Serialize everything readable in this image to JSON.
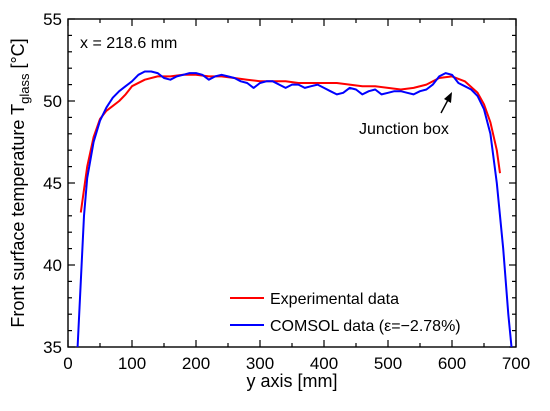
{
  "chart_data": {
    "type": "line",
    "xlabel": "y axis [mm]",
    "ylabel_main": "Front surface temperature T",
    "ylabel_sub": "glass",
    "ylabel_unit": " [°C]",
    "xlim": [
      0,
      700
    ],
    "ylim": [
      35,
      55
    ],
    "xticks": [
      0,
      100,
      200,
      300,
      400,
      500,
      600,
      700
    ],
    "yticks": [
      35,
      40,
      45,
      50,
      55
    ],
    "grid": false,
    "legend_position": "bottom-right",
    "annotations": [
      {
        "text": "x = 218.6 mm"
      },
      {
        "text": "Junction box",
        "arrow_to": [
          595,
          51.2
        ]
      }
    ],
    "series": [
      {
        "name": "Experimental data",
        "color": "#ff0000",
        "points": [
          [
            20,
            43.2
          ],
          [
            30,
            46.0
          ],
          [
            40,
            47.8
          ],
          [
            50,
            48.9
          ],
          [
            60,
            49.4
          ],
          [
            70,
            49.7
          ],
          [
            80,
            50.0
          ],
          [
            90,
            50.4
          ],
          [
            100,
            50.9
          ],
          [
            120,
            51.3
          ],
          [
            140,
            51.5
          ],
          [
            160,
            51.5
          ],
          [
            180,
            51.6
          ],
          [
            200,
            51.6
          ],
          [
            220,
            51.5
          ],
          [
            240,
            51.5
          ],
          [
            260,
            51.4
          ],
          [
            280,
            51.3
          ],
          [
            300,
            51.2
          ],
          [
            320,
            51.2
          ],
          [
            340,
            51.2
          ],
          [
            360,
            51.1
          ],
          [
            380,
            51.1
          ],
          [
            400,
            51.1
          ],
          [
            420,
            51.1
          ],
          [
            440,
            51.0
          ],
          [
            460,
            50.9
          ],
          [
            480,
            50.9
          ],
          [
            500,
            50.8
          ],
          [
            520,
            50.7
          ],
          [
            540,
            50.8
          ],
          [
            560,
            51.0
          ],
          [
            580,
            51.4
          ],
          [
            600,
            51.5
          ],
          [
            620,
            51.2
          ],
          [
            640,
            50.5
          ],
          [
            650,
            49.8
          ],
          [
            660,
            48.7
          ],
          [
            670,
            47.0
          ],
          [
            675,
            45.6
          ]
        ]
      },
      {
        "name": "COMSOL data (ε=−2.78%)",
        "color": "#0000ff",
        "points": [
          [
            15,
            35.0
          ],
          [
            20,
            39.0
          ],
          [
            25,
            43.0
          ],
          [
            30,
            45.3
          ],
          [
            40,
            47.5
          ],
          [
            50,
            48.8
          ],
          [
            60,
            49.6
          ],
          [
            70,
            50.2
          ],
          [
            80,
            50.6
          ],
          [
            90,
            50.9
          ],
          [
            100,
            51.2
          ],
          [
            110,
            51.6
          ],
          [
            120,
            51.8
          ],
          [
            130,
            51.8
          ],
          [
            140,
            51.7
          ],
          [
            150,
            51.4
          ],
          [
            160,
            51.3
          ],
          [
            170,
            51.5
          ],
          [
            180,
            51.6
          ],
          [
            190,
            51.7
          ],
          [
            200,
            51.7
          ],
          [
            210,
            51.6
          ],
          [
            220,
            51.3
          ],
          [
            230,
            51.5
          ],
          [
            240,
            51.6
          ],
          [
            250,
            51.5
          ],
          [
            260,
            51.4
          ],
          [
            270,
            51.2
          ],
          [
            280,
            51.1
          ],
          [
            290,
            50.8
          ],
          [
            300,
            51.1
          ],
          [
            310,
            51.2
          ],
          [
            320,
            51.2
          ],
          [
            330,
            51.0
          ],
          [
            340,
            50.8
          ],
          [
            350,
            51.0
          ],
          [
            360,
            51.0
          ],
          [
            370,
            50.8
          ],
          [
            380,
            50.9
          ],
          [
            390,
            51.0
          ],
          [
            400,
            50.8
          ],
          [
            410,
            50.6
          ],
          [
            420,
            50.4
          ],
          [
            430,
            50.5
          ],
          [
            440,
            50.8
          ],
          [
            450,
            50.7
          ],
          [
            460,
            50.4
          ],
          [
            470,
            50.6
          ],
          [
            480,
            50.7
          ],
          [
            490,
            50.4
          ],
          [
            500,
            50.5
          ],
          [
            510,
            50.6
          ],
          [
            520,
            50.6
          ],
          [
            530,
            50.5
          ],
          [
            540,
            50.4
          ],
          [
            550,
            50.6
          ],
          [
            560,
            50.7
          ],
          [
            570,
            51.0
          ],
          [
            580,
            51.5
          ],
          [
            590,
            51.7
          ],
          [
            600,
            51.6
          ],
          [
            610,
            51.1
          ],
          [
            620,
            50.9
          ],
          [
            630,
            50.7
          ],
          [
            640,
            50.3
          ],
          [
            650,
            49.5
          ],
          [
            660,
            48.0
          ],
          [
            670,
            45.0
          ],
          [
            680,
            41.0
          ],
          [
            688,
            37.0
          ],
          [
            693,
            35.0
          ]
        ]
      }
    ]
  }
}
